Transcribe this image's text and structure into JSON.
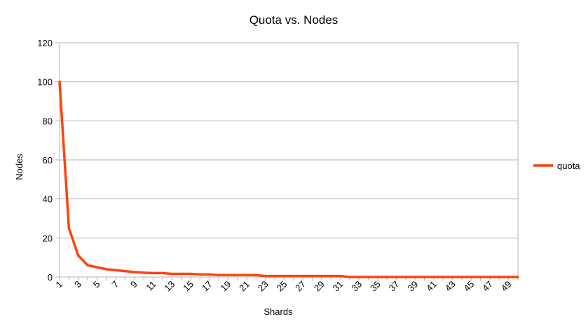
{
  "chart_data": {
    "type": "line",
    "title": "Quota vs. Nodes",
    "xlabel": "Shards",
    "ylabel": "Nodes",
    "x": [
      1,
      2,
      3,
      4,
      5,
      6,
      7,
      8,
      9,
      10,
      11,
      12,
      13,
      14,
      15,
      16,
      17,
      18,
      19,
      20,
      21,
      22,
      23,
      24,
      25,
      26,
      27,
      28,
      29,
      30,
      31,
      32,
      33,
      34,
      35,
      36,
      37,
      38,
      39,
      40,
      41,
      42,
      43,
      44,
      45,
      46,
      47,
      48,
      49,
      50
    ],
    "x_tick_labels": [
      "1",
      "3",
      "5",
      "7",
      "9",
      "11",
      "13",
      "15",
      "17",
      "19",
      "21",
      "23",
      "25",
      "27",
      "29",
      "31",
      "33",
      "35",
      "37",
      "39",
      "41",
      "43",
      "45",
      "47",
      "49"
    ],
    "ylim": [
      0,
      120
    ],
    "y_ticks": [
      0,
      20,
      40,
      60,
      80,
      100,
      120
    ],
    "grid": true,
    "legend_position": "right",
    "series": [
      {
        "name": "quota",
        "color": "#ff420e",
        "values": [
          100,
          25,
          11,
          6,
          5,
          4,
          3.5,
          3,
          2.5,
          2.2,
          2,
          2,
          1.6,
          1.6,
          1.6,
          1.3,
          1.3,
          1,
          1,
          1,
          1,
          1,
          0.5,
          0.5,
          0.5,
          0.5,
          0.5,
          0.5,
          0.5,
          0.5,
          0.5,
          0,
          0,
          0,
          0,
          0,
          0,
          0,
          0,
          0,
          0,
          0,
          0,
          0,
          0,
          0,
          0,
          0,
          0,
          0
        ]
      }
    ]
  }
}
